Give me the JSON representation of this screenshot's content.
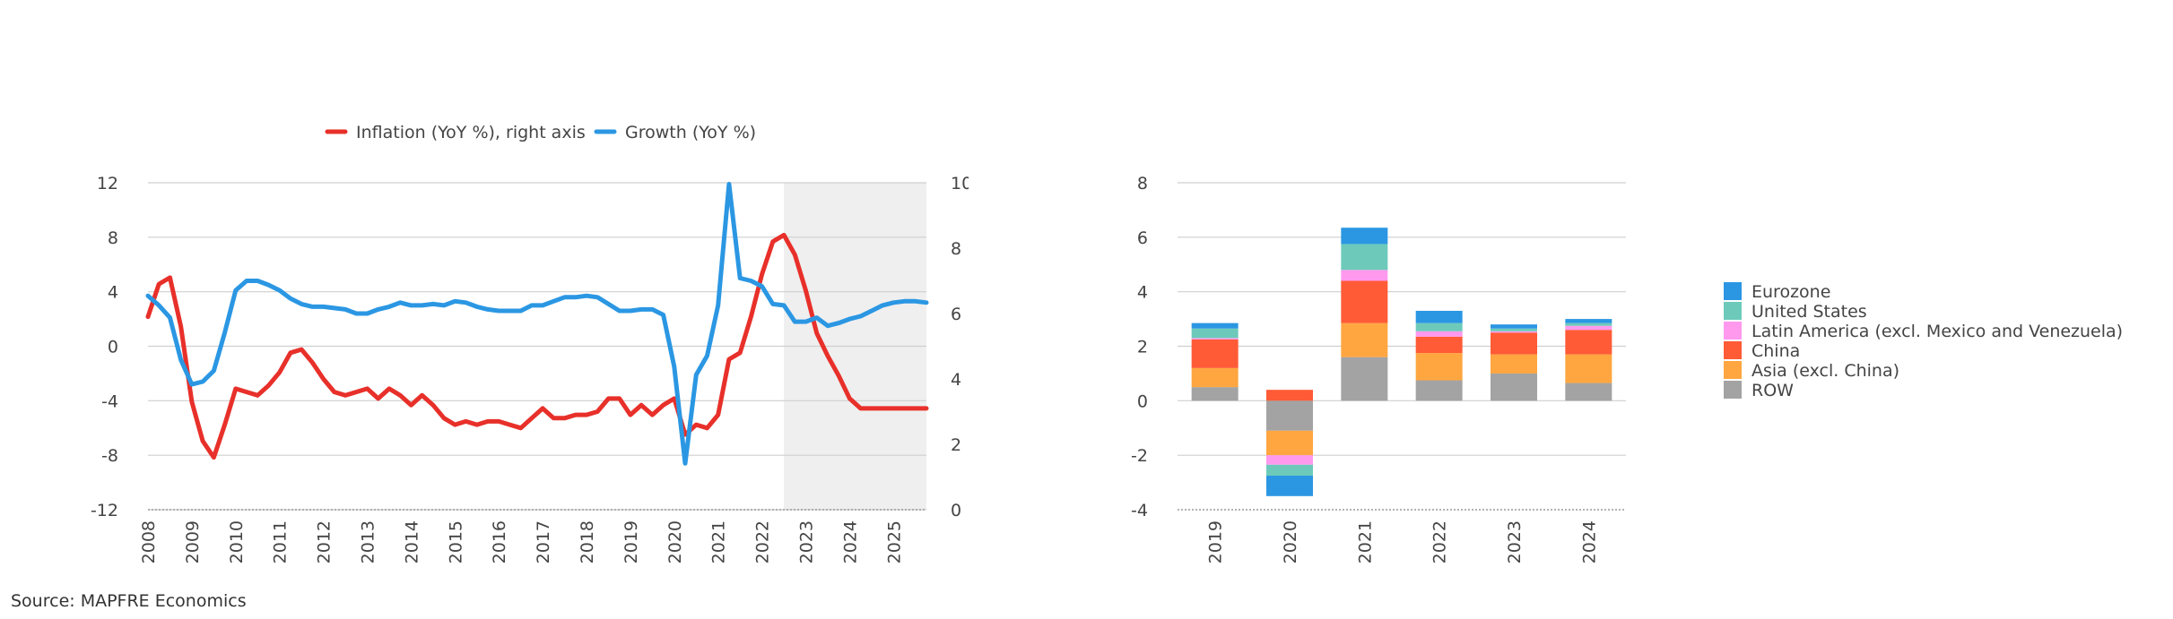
{
  "source": "Source: MAPFRE Economics",
  "chart_data": [
    {
      "type": "line",
      "legend": [
        {
          "name": "Inflation (YoY %), right axis",
          "color": "#e8302a"
        },
        {
          "name": "Growth (YoY %)",
          "color": "#2b97e3"
        }
      ],
      "legend_position": "top",
      "grid": true,
      "ylim_left": [
        -12,
        12
      ],
      "yticks_left": [
        "12",
        "8",
        "4",
        "0",
        "-4",
        "-8",
        "-12"
      ],
      "ylim_right": [
        0,
        10
      ],
      "yticks_right": [
        "10",
        "8",
        "6",
        "4",
        "2",
        "0"
      ],
      "xlim": [
        2008,
        2025.75
      ],
      "xticks": [
        "2008",
        "2009",
        "2010",
        "2011",
        "2012",
        "2013",
        "2014",
        "2015",
        "2016",
        "2017",
        "2018",
        "2019",
        "2020",
        "2021",
        "2022",
        "2023",
        "2024",
        "2025"
      ],
      "forecast_shading_from": 2022.5,
      "series": [
        {
          "name": "Inflation (YoY %), right axis",
          "color": "#e8302a",
          "axis": "right",
          "points": [
            [
              2008.0,
              5.9
            ],
            [
              2008.25,
              6.9
            ],
            [
              2008.5,
              7.1
            ],
            [
              2008.75,
              5.6
            ],
            [
              2009.0,
              3.3
            ],
            [
              2009.25,
              2.1
            ],
            [
              2009.5,
              1.6
            ],
            [
              2009.75,
              2.6
            ],
            [
              2010.0,
              3.7
            ],
            [
              2010.25,
              3.6
            ],
            [
              2010.5,
              3.5
            ],
            [
              2010.75,
              3.8
            ],
            [
              2011.0,
              4.2
            ],
            [
              2011.25,
              4.8
            ],
            [
              2011.5,
              4.9
            ],
            [
              2011.75,
              4.5
            ],
            [
              2012.0,
              4.0
            ],
            [
              2012.25,
              3.6
            ],
            [
              2012.5,
              3.5
            ],
            [
              2012.75,
              3.6
            ],
            [
              2013.0,
              3.7
            ],
            [
              2013.25,
              3.4
            ],
            [
              2013.5,
              3.7
            ],
            [
              2013.75,
              3.5
            ],
            [
              2014.0,
              3.2
            ],
            [
              2014.25,
              3.5
            ],
            [
              2014.5,
              3.2
            ],
            [
              2014.75,
              2.8
            ],
            [
              2015.0,
              2.6
            ],
            [
              2015.25,
              2.7
            ],
            [
              2015.5,
              2.6
            ],
            [
              2015.75,
              2.7
            ],
            [
              2016.0,
              2.7
            ],
            [
              2016.25,
              2.6
            ],
            [
              2016.5,
              2.5
            ],
            [
              2016.75,
              2.8
            ],
            [
              2017.0,
              3.1
            ],
            [
              2017.25,
              2.8
            ],
            [
              2017.5,
              2.8
            ],
            [
              2017.75,
              2.9
            ],
            [
              2018.0,
              2.9
            ],
            [
              2018.25,
              3.0
            ],
            [
              2018.5,
              3.4
            ],
            [
              2018.75,
              3.4
            ],
            [
              2019.0,
              2.9
            ],
            [
              2019.25,
              3.2
            ],
            [
              2019.5,
              2.9
            ],
            [
              2019.75,
              3.2
            ],
            [
              2020.0,
              3.4
            ],
            [
              2020.25,
              2.3
            ],
            [
              2020.5,
              2.6
            ],
            [
              2020.75,
              2.5
            ],
            [
              2021.0,
              2.9
            ],
            [
              2021.25,
              4.6
            ],
            [
              2021.5,
              4.8
            ],
            [
              2021.75,
              5.9
            ],
            [
              2022.0,
              7.2
            ],
            [
              2022.25,
              8.2
            ],
            [
              2022.5,
              8.4
            ],
            [
              2022.75,
              7.8
            ],
            [
              2023.0,
              6.7
            ],
            [
              2023.25,
              5.4
            ],
            [
              2023.5,
              4.7
            ],
            [
              2023.75,
              4.1
            ],
            [
              2024.0,
              3.4
            ],
            [
              2024.25,
              3.1
            ],
            [
              2024.5,
              3.1
            ],
            [
              2024.75,
              3.1
            ],
            [
              2025.0,
              3.1
            ],
            [
              2025.25,
              3.1
            ],
            [
              2025.5,
              3.1
            ],
            [
              2025.75,
              3.1
            ]
          ]
        },
        {
          "name": "Growth (YoY %)",
          "color": "#2b97e3",
          "axis": "left",
          "points": [
            [
              2008.0,
              3.7
            ],
            [
              2008.25,
              3.0
            ],
            [
              2008.5,
              2.1
            ],
            [
              2008.75,
              -1.0
            ],
            [
              2009.0,
              -2.8
            ],
            [
              2009.25,
              -2.6
            ],
            [
              2009.5,
              -1.8
            ],
            [
              2009.75,
              1.0
            ],
            [
              2010.0,
              4.1
            ],
            [
              2010.25,
              4.8
            ],
            [
              2010.5,
              4.8
            ],
            [
              2010.75,
              4.5
            ],
            [
              2011.0,
              4.1
            ],
            [
              2011.25,
              3.5
            ],
            [
              2011.5,
              3.1
            ],
            [
              2011.75,
              2.9
            ],
            [
              2012.0,
              2.9
            ],
            [
              2012.25,
              2.8
            ],
            [
              2012.5,
              2.7
            ],
            [
              2012.75,
              2.4
            ],
            [
              2013.0,
              2.4
            ],
            [
              2013.25,
              2.7
            ],
            [
              2013.5,
              2.9
            ],
            [
              2013.75,
              3.2
            ],
            [
              2014.0,
              3.0
            ],
            [
              2014.25,
              3.0
            ],
            [
              2014.5,
              3.1
            ],
            [
              2014.75,
              3.0
            ],
            [
              2015.0,
              3.3
            ],
            [
              2015.25,
              3.2
            ],
            [
              2015.5,
              2.9
            ],
            [
              2015.75,
              2.7
            ],
            [
              2016.0,
              2.6
            ],
            [
              2016.25,
              2.6
            ],
            [
              2016.5,
              2.6
            ],
            [
              2016.75,
              3.0
            ],
            [
              2017.0,
              3.0
            ],
            [
              2017.25,
              3.3
            ],
            [
              2017.5,
              3.6
            ],
            [
              2017.75,
              3.6
            ],
            [
              2018.0,
              3.7
            ],
            [
              2018.25,
              3.6
            ],
            [
              2018.5,
              3.1
            ],
            [
              2018.75,
              2.6
            ],
            [
              2019.0,
              2.6
            ],
            [
              2019.25,
              2.7
            ],
            [
              2019.5,
              2.7
            ],
            [
              2019.75,
              2.3
            ],
            [
              2020.0,
              -1.5
            ],
            [
              2020.25,
              -8.6
            ],
            [
              2020.5,
              -2.1
            ],
            [
              2020.75,
              -0.7
            ],
            [
              2021.0,
              3.0
            ],
            [
              2021.25,
              11.9
            ],
            [
              2021.5,
              5.0
            ],
            [
              2021.75,
              4.8
            ],
            [
              2022.0,
              4.4
            ],
            [
              2022.25,
              3.1
            ],
            [
              2022.5,
              3.0
            ],
            [
              2022.75,
              1.8
            ],
            [
              2023.0,
              1.8
            ],
            [
              2023.25,
              2.1
            ],
            [
              2023.5,
              1.5
            ],
            [
              2023.75,
              1.7
            ],
            [
              2024.0,
              2.0
            ],
            [
              2024.25,
              2.2
            ],
            [
              2024.5,
              2.6
            ],
            [
              2024.75,
              3.0
            ],
            [
              2025.0,
              3.2
            ],
            [
              2025.25,
              3.3
            ],
            [
              2025.5,
              3.3
            ],
            [
              2025.75,
              3.2
            ]
          ]
        }
      ]
    },
    {
      "type": "bar",
      "stacked": true,
      "categories": [
        "2019",
        "2020",
        "2021",
        "2022",
        "2023",
        "2024"
      ],
      "ylim": [
        -4,
        8
      ],
      "yticks": [
        "8",
        "6",
        "4",
        "2",
        "0",
        "-2",
        "-4"
      ],
      "grid": true,
      "legend_position": "right",
      "series": [
        {
          "name": "ROW",
          "color": "#a3a3a3",
          "values": [
            0.5,
            -1.1,
            1.6,
            0.75,
            1.0,
            0.65
          ]
        },
        {
          "name": "Asia (excl. China)",
          "color": "#ffa640",
          "values": [
            0.7,
            -0.9,
            1.25,
            1.0,
            0.7,
            1.05
          ]
        },
        {
          "name": "China",
          "color": "#ff5b36",
          "values": [
            1.05,
            0.4,
            1.55,
            0.6,
            0.8,
            0.9
          ]
        },
        {
          "name": "Latin America (excl. Mexico and Venezuela)",
          "color": "#ff99ee",
          "values": [
            0.05,
            -0.35,
            0.4,
            0.2,
            0.05,
            0.15
          ]
        },
        {
          "name": "United States",
          "color": "#6dcaba",
          "values": [
            0.35,
            -0.4,
            0.95,
            0.3,
            0.1,
            0.1
          ]
        },
        {
          "name": "Eurozone",
          "color": "#2b97e3",
          "values": [
            0.2,
            -0.75,
            0.6,
            0.45,
            0.15,
            0.15
          ]
        }
      ],
      "legend_order": [
        "Eurozone",
        "United States",
        "Latin America (excl. Mexico and Venezuela)",
        "China",
        "Asia (excl. China)",
        "ROW"
      ]
    }
  ]
}
